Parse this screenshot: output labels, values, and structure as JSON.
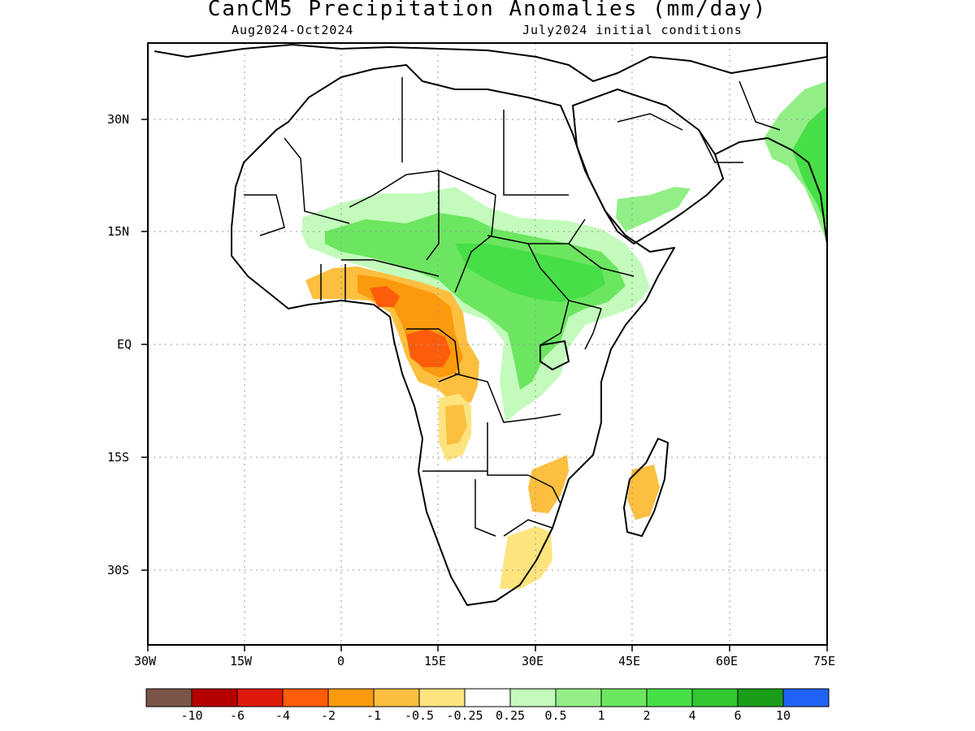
{
  "title": "CanCM5 Precipitation Anomalies (mm/day)",
  "subtitle_left": "Aug2024-Oct2024",
  "subtitle_right": "July2024 initial conditions",
  "map": {
    "projection": "lat-lon",
    "lon_range": [
      -30,
      75
    ],
    "lat_range": [
      -40,
      40
    ],
    "x_ticks": [
      "30W",
      "15W",
      "0",
      "15E",
      "30E",
      "45E",
      "60E",
      "75E"
    ],
    "y_ticks": [
      "30N",
      "15N",
      "EQ",
      "15S",
      "30S"
    ],
    "grid": "dotted"
  },
  "colorbar": {
    "colors": [
      "#7a5547",
      "#b40000",
      "#dd1a0a",
      "#fd5c0a",
      "#fb9a0c",
      "#fcbf40",
      "#fde47e",
      "#ffffff",
      "#c3fbbc",
      "#92ef87",
      "#6ce660",
      "#47df47",
      "#31c731",
      "#1a9e1a",
      "#2163f6"
    ],
    "labels": [
      "-10",
      "-6",
      "-4",
      "-2",
      "-1",
      "-0.5",
      "-0.25",
      "0.25",
      "0.5",
      "1",
      "2",
      "4",
      "6",
      "10"
    ]
  }
}
